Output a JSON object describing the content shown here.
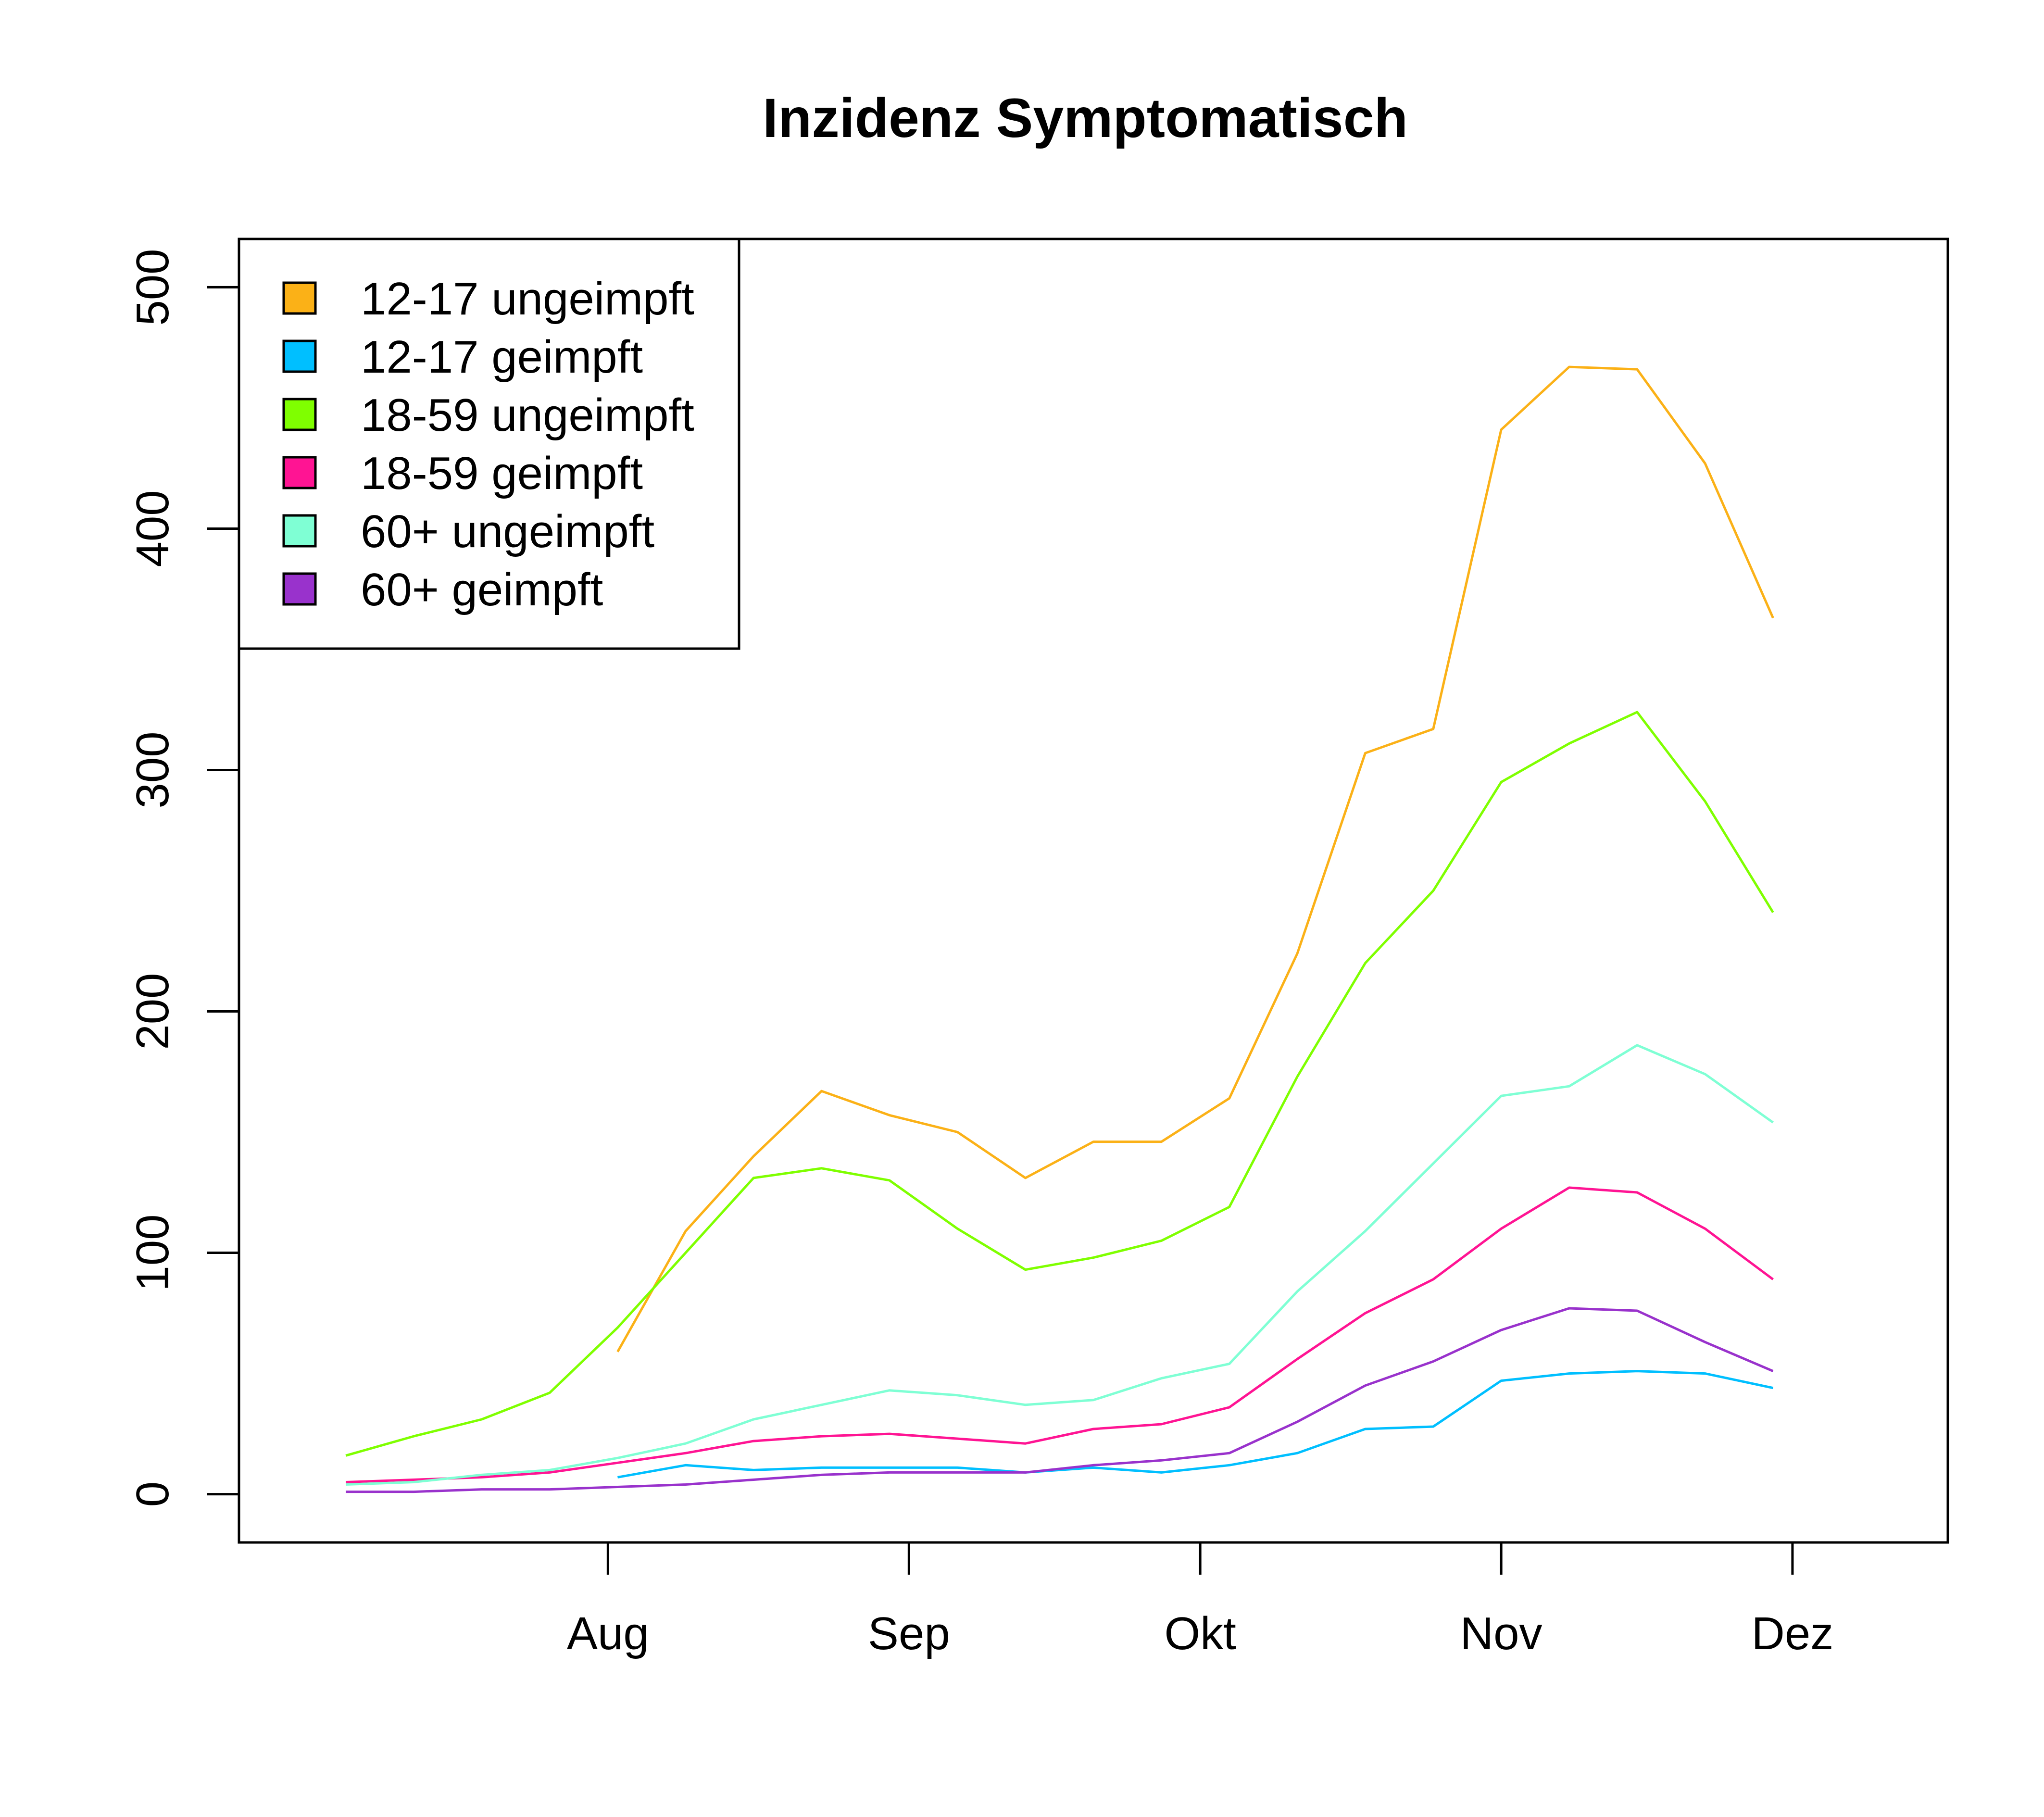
{
  "chart_data": {
    "type": "line",
    "title": "Inzidenz Symptomatisch",
    "xlabel": "",
    "ylabel": "",
    "x_ticks": [
      "Aug",
      "Sep",
      "Okt",
      "Nov",
      "Dez"
    ],
    "y_ticks": [
      0,
      100,
      200,
      300,
      400,
      500
    ],
    "ylim": [
      -20,
      520
    ],
    "grid": false,
    "legend_position": "top-left",
    "x": [
      "2021-07-05",
      "2021-07-12",
      "2021-07-19",
      "2021-07-26",
      "2021-08-02",
      "2021-08-09",
      "2021-08-16",
      "2021-08-23",
      "2021-08-30",
      "2021-09-06",
      "2021-09-13",
      "2021-09-20",
      "2021-09-27",
      "2021-10-04",
      "2021-10-11",
      "2021-10-18",
      "2021-10-25",
      "2021-11-01",
      "2021-11-08",
      "2021-11-15",
      "2021-11-22",
      "2021-11-29",
      "2021-12-06"
    ],
    "series": [
      {
        "name": "12-17 ungeimpft",
        "color": "#FBB117",
        "values": [
          null,
          null,
          null,
          null,
          59,
          109,
          140,
          167,
          157,
          150,
          131,
          146,
          146,
          164,
          224,
          307,
          317,
          441,
          467,
          466,
          427,
          363,
          null
        ]
      },
      {
        "name": "12-17 geimpft",
        "color": "#00BFFF",
        "values": [
          null,
          null,
          null,
          null,
          7,
          12,
          10,
          11,
          11,
          11,
          9,
          11,
          9,
          12,
          17,
          27,
          28,
          47,
          50,
          51,
          50,
          44,
          null
        ]
      },
      {
        "name": "18-59 ungeimpft",
        "color": "#7FFF00",
        "values": [
          16,
          24,
          31,
          42,
          69,
          100,
          131,
          135,
          130,
          110,
          93,
          98,
          105,
          119,
          173,
          220,
          250,
          295,
          311,
          324,
          287,
          241,
          null
        ]
      },
      {
        "name": "18-59 geimpft",
        "color": "#FF1493",
        "values": [
          5,
          6,
          7,
          9,
          13,
          17,
          22,
          24,
          25,
          23,
          21,
          27,
          29,
          36,
          56,
          75,
          89,
          110,
          127,
          125,
          110,
          89,
          null
        ]
      },
      {
        "name": "60+ ungeimpft",
        "color": "#7FFFD4",
        "values": [
          4,
          5,
          8,
          10,
          15,
          21,
          31,
          37,
          43,
          41,
          37,
          39,
          48,
          54,
          84,
          109,
          137,
          165,
          169,
          186,
          174,
          154,
          null
        ]
      },
      {
        "name": "60+ geimpft",
        "color": "#9932CC",
        "values": [
          1,
          1,
          2,
          2,
          3,
          4,
          6,
          8,
          9,
          9,
          9,
          12,
          14,
          17,
          30,
          45,
          55,
          68,
          77,
          76,
          63,
          51,
          null
        ]
      }
    ]
  }
}
